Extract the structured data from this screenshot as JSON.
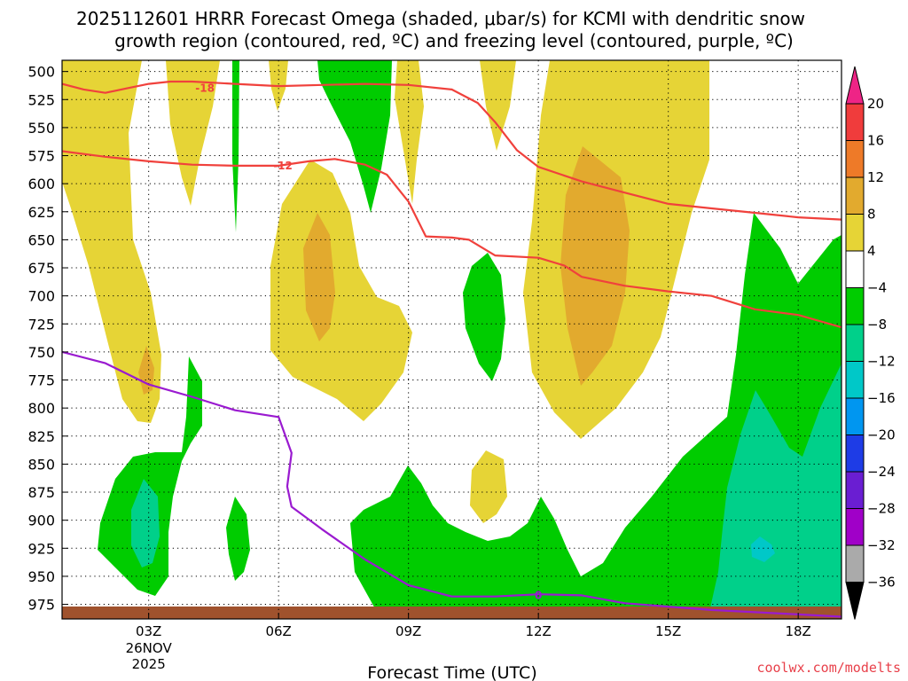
{
  "chart_data": {
    "type": "contour",
    "title_line1": "2025112601 HRRR Forecast Omega (shaded, μbar/s) for KCMI with dendritic snow",
    "title_line2": "growth region (contoured, red, ºC) and freezing level (contoured, purple, ºC)",
    "xlabel": "Forecast Time (UTC)",
    "credit": "coolwx.com/modelts",
    "x_range_hours": [
      1,
      19
    ],
    "y_range_hpa": [
      490,
      988
    ],
    "y_ticks": [
      500,
      525,
      550,
      575,
      600,
      625,
      650,
      675,
      700,
      725,
      750,
      775,
      800,
      825,
      850,
      875,
      900,
      925,
      950,
      975
    ],
    "x_ticks": [
      {
        "hour": 3,
        "label": "03Z",
        "date_line1": "26NOV",
        "date_line2": "2025"
      },
      {
        "hour": 6,
        "label": "06Z"
      },
      {
        "hour": 9,
        "label": "09Z"
      },
      {
        "hour": 12,
        "label": "12Z"
      },
      {
        "hour": 15,
        "label": "15Z"
      },
      {
        "hour": 18,
        "label": "18Z"
      }
    ],
    "colorbar": {
      "labels": [
        "20",
        "16",
        "12",
        "8",
        "4",
        "−4",
        "−8",
        "−12",
        "−16",
        "−20",
        "−24",
        "−28",
        "−32",
        "−36"
      ],
      "colors": [
        "#f03c3c",
        "#ee7a28",
        "#e2aa2e",
        "#e6d436",
        "#ffffff",
        "#00cc00",
        "#00d08a",
        "#00c8c8",
        "#0096f0",
        "#1e3ce6",
        "#6a1ed2",
        "#a000c8",
        "#aaaaaa"
      ],
      "top_color": "#ee2486",
      "bottom_color": "#000000"
    },
    "dgz_contours": [
      {
        "label": "-18",
        "label_at": [
          4.3,
          515
        ],
        "points": [
          [
            1,
            511
          ],
          [
            1.5,
            516
          ],
          [
            2,
            519
          ],
          [
            2.5,
            515
          ],
          [
            3,
            511
          ],
          [
            3.5,
            509
          ],
          [
            4,
            509
          ],
          [
            5,
            511
          ],
          [
            6,
            513
          ],
          [
            7,
            512
          ],
          [
            8,
            511
          ],
          [
            9,
            512
          ],
          [
            10,
            516
          ],
          [
            10.6,
            528
          ],
          [
            11,
            545
          ],
          [
            11.5,
            570
          ],
          [
            12,
            585
          ],
          [
            13,
            598
          ],
          [
            14,
            608
          ],
          [
            15,
            618
          ],
          [
            16,
            622
          ],
          [
            17,
            626
          ],
          [
            18,
            630
          ],
          [
            19,
            632
          ]
        ]
      },
      {
        "label": "-12",
        "label_at": [
          6.1,
          584
        ],
        "points": [
          [
            1,
            571
          ],
          [
            2,
            576
          ],
          [
            3,
            580
          ],
          [
            4,
            583
          ],
          [
            5,
            584
          ],
          [
            6,
            584
          ],
          [
            6.7,
            580
          ],
          [
            7.3,
            578
          ],
          [
            8,
            583
          ],
          [
            8.5,
            592
          ],
          [
            9,
            616
          ],
          [
            9.4,
            647
          ],
          [
            10,
            648
          ],
          [
            10.4,
            650
          ],
          [
            11,
            664
          ],
          [
            12,
            666
          ],
          [
            12.6,
            673
          ],
          [
            13,
            683
          ],
          [
            14,
            691
          ],
          [
            15,
            696
          ],
          [
            16,
            700
          ],
          [
            17,
            712
          ],
          [
            18,
            717
          ],
          [
            19,
            728
          ]
        ]
      }
    ],
    "freezing_contour": {
      "label": "0",
      "label_at": [
        12,
        967
      ],
      "points": [
        [
          1,
          750
        ],
        [
          2,
          760
        ],
        [
          3,
          779
        ],
        [
          4,
          790
        ],
        [
          5,
          802
        ],
        [
          6,
          808
        ],
        [
          6.3,
          840
        ],
        [
          6.2,
          870
        ],
        [
          6.3,
          888
        ],
        [
          7,
          908
        ],
        [
          8,
          935
        ],
        [
          9,
          958
        ],
        [
          10,
          968
        ],
        [
          11,
          968
        ],
        [
          12,
          966
        ],
        [
          13,
          967
        ],
        [
          14,
          974
        ],
        [
          15,
          977
        ],
        [
          16,
          980
        ],
        [
          17,
          982
        ],
        [
          18,
          984
        ],
        [
          19,
          986
        ]
      ]
    }
  }
}
